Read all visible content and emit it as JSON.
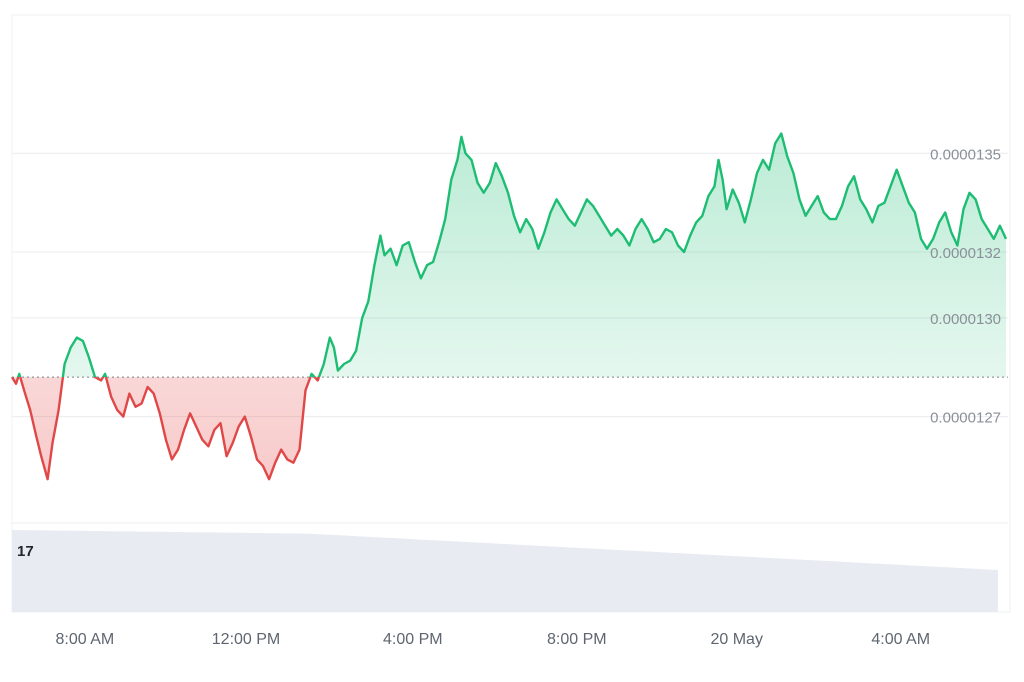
{
  "chart_data": {
    "type": "area",
    "baseline": 1.282e-05,
    "colors": {
      "up_line": "#1dbd73",
      "up_fill": "#1dbd73",
      "down_line": "#e04848",
      "down_fill": "#e85a5a",
      "grid": "#e9ecef",
      "baseline": "#7b8088",
      "volume": "#e8ebf1"
    },
    "grid": true,
    "y_ticks": [
      {
        "value": 1.27e-05,
        "label": "0.0000127"
      },
      {
        "value": 1.3e-05,
        "label": "0.0000130"
      },
      {
        "value": 1.32e-05,
        "label": "0.0000132"
      },
      {
        "value": 1.35e-05,
        "label": "0.0000135"
      }
    ],
    "x_ticks": [
      {
        "value": 7.8,
        "label": "8:00 AM"
      },
      {
        "value": 11.78,
        "label": "12:00 PM"
      },
      {
        "value": 15.9,
        "label": "4:00 PM"
      },
      {
        "value": 19.95,
        "label": "8:00 PM"
      },
      {
        "value": 23.9,
        "label": "20 May"
      },
      {
        "value": 27.95,
        "label": "4:00 AM"
      }
    ],
    "x_range": [
      6.0,
      30.6
    ],
    "price_range": [
      1.238e-05,
      1.392e-05
    ],
    "series_points": [
      [
        6.0,
        12.82
      ],
      [
        6.1,
        12.8
      ],
      [
        6.18,
        12.83
      ],
      [
        6.3,
        12.78
      ],
      [
        6.45,
        12.72
      ],
      [
        6.6,
        12.64
      ],
      [
        6.72,
        12.58
      ],
      [
        6.88,
        12.51
      ],
      [
        7.0,
        12.62
      ],
      [
        7.15,
        12.72
      ],
      [
        7.3,
        12.86
      ],
      [
        7.45,
        12.91
      ],
      [
        7.6,
        12.94
      ],
      [
        7.75,
        12.93
      ],
      [
        7.9,
        12.88
      ],
      [
        8.05,
        12.82
      ],
      [
        8.2,
        12.81
      ],
      [
        8.3,
        12.83
      ],
      [
        8.45,
        12.76
      ],
      [
        8.6,
        12.72
      ],
      [
        8.75,
        12.7
      ],
      [
        8.9,
        12.77
      ],
      [
        9.05,
        12.73
      ],
      [
        9.2,
        12.74
      ],
      [
        9.35,
        12.79
      ],
      [
        9.5,
        12.77
      ],
      [
        9.65,
        12.71
      ],
      [
        9.8,
        12.63
      ],
      [
        9.95,
        12.57
      ],
      [
        10.1,
        12.6
      ],
      [
        10.25,
        12.66
      ],
      [
        10.4,
        12.71
      ],
      [
        10.55,
        12.67
      ],
      [
        10.7,
        12.63
      ],
      [
        10.85,
        12.61
      ],
      [
        11.0,
        12.66
      ],
      [
        11.15,
        12.68
      ],
      [
        11.3,
        12.58
      ],
      [
        11.45,
        12.62
      ],
      [
        11.6,
        12.67
      ],
      [
        11.75,
        12.7
      ],
      [
        11.9,
        12.64
      ],
      [
        12.05,
        12.57
      ],
      [
        12.2,
        12.55
      ],
      [
        12.35,
        12.51
      ],
      [
        12.5,
        12.56
      ],
      [
        12.65,
        12.6
      ],
      [
        12.8,
        12.57
      ],
      [
        12.95,
        12.56
      ],
      [
        13.1,
        12.6
      ],
      [
        13.25,
        12.78
      ],
      [
        13.4,
        12.83
      ],
      [
        13.55,
        12.81
      ],
      [
        13.7,
        12.86
      ],
      [
        13.85,
        12.94
      ],
      [
        13.95,
        12.91
      ],
      [
        14.05,
        12.84
      ],
      [
        14.2,
        12.86
      ],
      [
        14.35,
        12.87
      ],
      [
        14.5,
        12.9
      ],
      [
        14.65,
        13.0
      ],
      [
        14.8,
        13.05
      ],
      [
        14.95,
        13.16
      ],
      [
        15.1,
        13.25
      ],
      [
        15.2,
        13.19
      ],
      [
        15.35,
        13.21
      ],
      [
        15.5,
        13.16
      ],
      [
        15.65,
        13.22
      ],
      [
        15.8,
        13.23
      ],
      [
        15.95,
        13.17
      ],
      [
        16.1,
        13.12
      ],
      [
        16.25,
        13.16
      ],
      [
        16.4,
        13.17
      ],
      [
        16.55,
        13.23
      ],
      [
        16.7,
        13.3
      ],
      [
        16.85,
        13.42
      ],
      [
        17.0,
        13.48
      ],
      [
        17.1,
        13.55
      ],
      [
        17.2,
        13.5
      ],
      [
        17.35,
        13.48
      ],
      [
        17.5,
        13.41
      ],
      [
        17.65,
        13.38
      ],
      [
        17.8,
        13.41
      ],
      [
        17.95,
        13.47
      ],
      [
        18.1,
        13.43
      ],
      [
        18.25,
        13.38
      ],
      [
        18.4,
        13.31
      ],
      [
        18.55,
        13.26
      ],
      [
        18.7,
        13.3
      ],
      [
        18.85,
        13.27
      ],
      [
        19.0,
        13.21
      ],
      [
        19.15,
        13.26
      ],
      [
        19.3,
        13.32
      ],
      [
        19.45,
        13.36
      ],
      [
        19.6,
        13.33
      ],
      [
        19.75,
        13.3
      ],
      [
        19.9,
        13.28
      ],
      [
        20.05,
        13.32
      ],
      [
        20.2,
        13.36
      ],
      [
        20.35,
        13.34
      ],
      [
        20.5,
        13.31
      ],
      [
        20.65,
        13.28
      ],
      [
        20.8,
        13.25
      ],
      [
        20.95,
        13.27
      ],
      [
        21.1,
        13.25
      ],
      [
        21.25,
        13.22
      ],
      [
        21.4,
        13.27
      ],
      [
        21.55,
        13.3
      ],
      [
        21.7,
        13.27
      ],
      [
        21.85,
        13.23
      ],
      [
        22.0,
        13.24
      ],
      [
        22.15,
        13.27
      ],
      [
        22.3,
        13.26
      ],
      [
        22.45,
        13.22
      ],
      [
        22.6,
        13.2
      ],
      [
        22.75,
        13.25
      ],
      [
        22.9,
        13.29
      ],
      [
        23.05,
        13.31
      ],
      [
        23.2,
        13.37
      ],
      [
        23.35,
        13.4
      ],
      [
        23.45,
        13.48
      ],
      [
        23.55,
        13.42
      ],
      [
        23.65,
        13.33
      ],
      [
        23.8,
        13.39
      ],
      [
        23.95,
        13.35
      ],
      [
        24.1,
        13.29
      ],
      [
        24.25,
        13.36
      ],
      [
        24.4,
        13.44
      ],
      [
        24.55,
        13.48
      ],
      [
        24.7,
        13.45
      ],
      [
        24.85,
        13.53
      ],
      [
        25.0,
        13.56
      ],
      [
        25.15,
        13.49
      ],
      [
        25.3,
        13.44
      ],
      [
        25.45,
        13.36
      ],
      [
        25.6,
        13.31
      ],
      [
        25.75,
        13.34
      ],
      [
        25.9,
        13.37
      ],
      [
        26.05,
        13.32
      ],
      [
        26.2,
        13.3
      ],
      [
        26.35,
        13.3
      ],
      [
        26.5,
        13.34
      ],
      [
        26.65,
        13.4
      ],
      [
        26.8,
        13.43
      ],
      [
        26.95,
        13.36
      ],
      [
        27.1,
        13.33
      ],
      [
        27.25,
        13.29
      ],
      [
        27.4,
        13.34
      ],
      [
        27.55,
        13.35
      ],
      [
        27.7,
        13.4
      ],
      [
        27.85,
        13.45
      ],
      [
        28.0,
        13.4
      ],
      [
        28.15,
        13.35
      ],
      [
        28.3,
        13.32
      ],
      [
        28.45,
        13.24
      ],
      [
        28.6,
        13.21
      ],
      [
        28.75,
        13.24
      ],
      [
        28.9,
        13.29
      ],
      [
        29.05,
        13.32
      ],
      [
        29.2,
        13.26
      ],
      [
        29.35,
        13.22
      ],
      [
        29.5,
        13.33
      ],
      [
        29.65,
        13.38
      ],
      [
        29.8,
        13.36
      ],
      [
        29.95,
        13.3
      ],
      [
        30.1,
        13.27
      ],
      [
        30.25,
        13.24
      ],
      [
        30.4,
        13.28
      ],
      [
        30.55,
        13.24
      ]
    ],
    "volume_label": "17"
  }
}
